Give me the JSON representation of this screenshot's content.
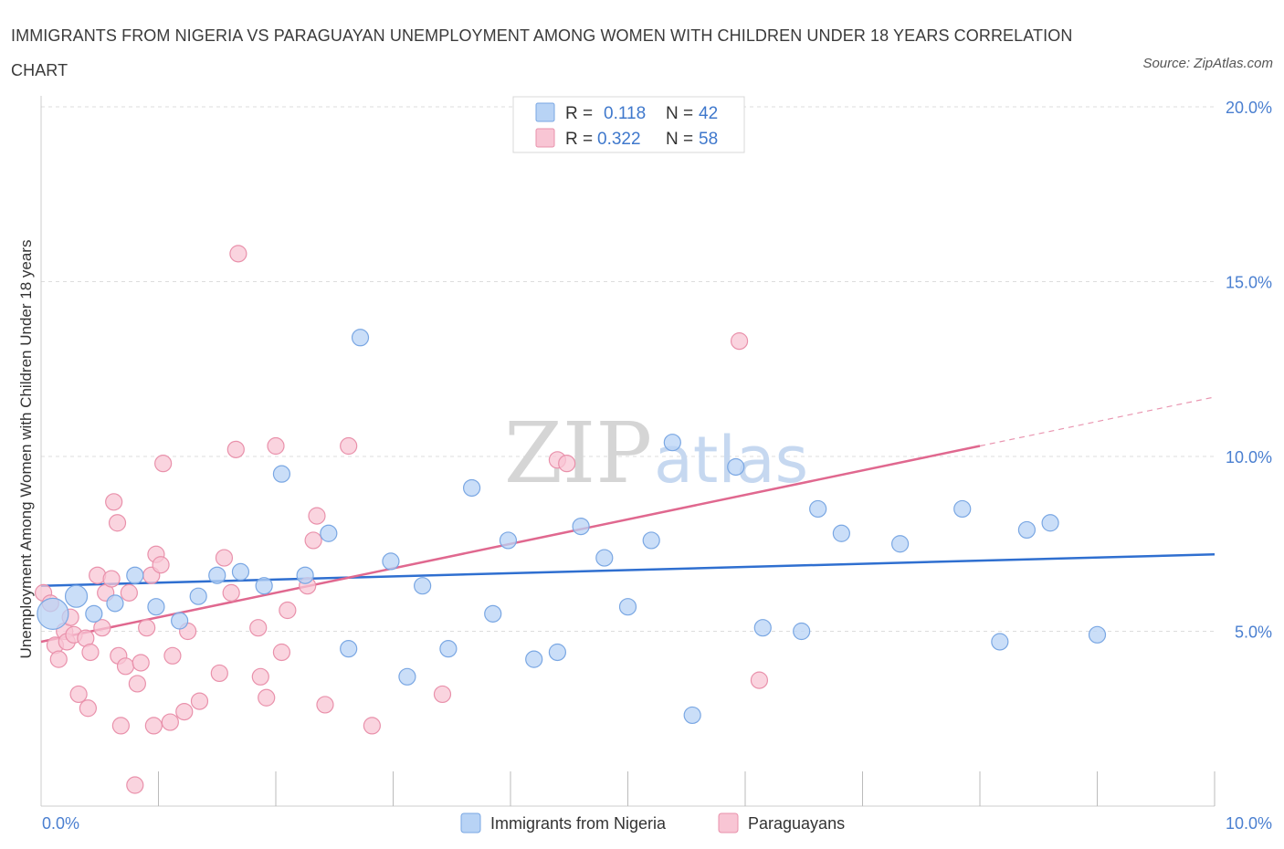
{
  "title": "IMMIGRANTS FROM NIGERIA VS PARAGUAYAN UNEMPLOYMENT AMONG WOMEN WITH CHILDREN UNDER 18 YEARS CORRELATION CHART",
  "source": "Source: ZipAtlas.com",
  "watermark": {
    "zip": "ZIP",
    "atlas": "atlas"
  },
  "colors": {
    "blue_fill": "#b8d3f5",
    "blue_stroke": "#7aa7e3",
    "blue_line": "#2f6fd0",
    "pink_fill": "#f8c5d4",
    "pink_stroke": "#e991ab",
    "pink_line": "#e0688f",
    "grid": "#dddddd",
    "axis_text": "#4a7fd0"
  },
  "legend": {
    "r_label": "R =",
    "n_label": "N =",
    "series": [
      {
        "r": "0.118",
        "n": "42"
      },
      {
        "r": "0.322",
        "n": "58"
      }
    ]
  },
  "chart_data": {
    "type": "scatter",
    "title": "IMMIGRANTS FROM NIGERIA VS PARAGUAYAN UNEMPLOYMENT AMONG WOMEN WITH CHILDREN UNDER 18 YEARS CORRELATION CHART",
    "xlabel": "",
    "ylabel": "Unemployment Among Women with Children Under 18 years",
    "xlim": [
      0,
      10
    ],
    "ylim": [
      0,
      20
    ],
    "x_tick_labels": [
      "0.0%",
      "10.0%"
    ],
    "y_ticks": [
      5,
      10,
      15,
      20
    ],
    "y_tick_labels": [
      "5.0%",
      "10.0%",
      "15.0%",
      "20.0%"
    ],
    "grid": true,
    "legend_position": "top-center",
    "series": [
      {
        "name": "Immigrants from Nigeria",
        "color": "#b8d3f5",
        "r": 0.118,
        "n": 42,
        "trend": {
          "x0": 0,
          "y0": 6.3,
          "x1": 10,
          "y1": 7.2,
          "dashed_to": null
        },
        "points": [
          [
            0.1,
            5.5
          ],
          [
            0.3,
            6.0
          ],
          [
            0.45,
            5.5
          ],
          [
            0.63,
            5.8
          ],
          [
            0.8,
            6.6
          ],
          [
            0.98,
            5.7
          ],
          [
            1.18,
            5.3
          ],
          [
            1.34,
            6.0
          ],
          [
            1.5,
            6.6
          ],
          [
            1.7,
            6.7
          ],
          [
            1.9,
            6.3
          ],
          [
            2.05,
            9.5
          ],
          [
            2.25,
            6.6
          ],
          [
            2.45,
            7.8
          ],
          [
            2.62,
            4.5
          ],
          [
            2.72,
            13.4
          ],
          [
            2.98,
            7.0
          ],
          [
            3.12,
            3.7
          ],
          [
            3.25,
            6.3
          ],
          [
            3.47,
            4.5
          ],
          [
            3.67,
            9.1
          ],
          [
            3.85,
            5.5
          ],
          [
            3.98,
            7.6
          ],
          [
            4.2,
            4.2
          ],
          [
            4.4,
            4.4
          ],
          [
            4.6,
            8.0
          ],
          [
            4.8,
            7.1
          ],
          [
            5.0,
            5.7
          ],
          [
            5.2,
            7.6
          ],
          [
            5.38,
            10.4
          ],
          [
            5.55,
            2.6
          ],
          [
            5.92,
            9.7
          ],
          [
            6.15,
            5.1
          ],
          [
            6.48,
            5.0
          ],
          [
            6.62,
            8.5
          ],
          [
            6.82,
            7.8
          ],
          [
            7.32,
            7.5
          ],
          [
            7.85,
            8.5
          ],
          [
            8.17,
            4.7
          ],
          [
            8.4,
            7.9
          ],
          [
            8.6,
            8.1
          ],
          [
            9.0,
            4.9
          ]
        ]
      },
      {
        "name": "Paraguayans",
        "color": "#f8c5d4",
        "r": 0.322,
        "n": 58,
        "trend": {
          "x0": 0,
          "y0": 4.7,
          "x1": 8.0,
          "y1": 10.3,
          "dashed_to": {
            "x": 10,
            "y": 11.7
          }
        },
        "points": [
          [
            0.02,
            6.1
          ],
          [
            0.08,
            5.8
          ],
          [
            0.12,
            4.6
          ],
          [
            0.15,
            4.2
          ],
          [
            0.2,
            5.0
          ],
          [
            0.22,
            4.7
          ],
          [
            0.25,
            5.4
          ],
          [
            0.28,
            4.9
          ],
          [
            0.32,
            3.2
          ],
          [
            0.38,
            4.8
          ],
          [
            0.4,
            2.8
          ],
          [
            0.42,
            4.4
          ],
          [
            0.48,
            6.6
          ],
          [
            0.52,
            5.1
          ],
          [
            0.55,
            6.1
          ],
          [
            0.6,
            6.5
          ],
          [
            0.62,
            8.7
          ],
          [
            0.65,
            8.1
          ],
          [
            0.66,
            4.3
          ],
          [
            0.68,
            2.3
          ],
          [
            0.72,
            4.0
          ],
          [
            0.75,
            6.1
          ],
          [
            0.8,
            0.6
          ],
          [
            0.82,
            3.5
          ],
          [
            0.85,
            4.1
          ],
          [
            0.9,
            5.1
          ],
          [
            0.94,
            6.6
          ],
          [
            0.96,
            2.3
          ],
          [
            0.98,
            7.2
          ],
          [
            1.02,
            6.9
          ],
          [
            1.04,
            9.8
          ],
          [
            1.1,
            2.4
          ],
          [
            1.12,
            4.3
          ],
          [
            1.22,
            2.7
          ],
          [
            1.25,
            5.0
          ],
          [
            1.35,
            3.0
          ],
          [
            1.52,
            3.8
          ],
          [
            1.56,
            7.1
          ],
          [
            1.62,
            6.1
          ],
          [
            1.66,
            10.2
          ],
          [
            1.68,
            15.8
          ],
          [
            1.85,
            5.1
          ],
          [
            1.87,
            3.7
          ],
          [
            1.92,
            3.1
          ],
          [
            2.0,
            10.3
          ],
          [
            2.05,
            4.4
          ],
          [
            2.1,
            5.6
          ],
          [
            2.27,
            6.3
          ],
          [
            2.32,
            7.6
          ],
          [
            2.35,
            8.3
          ],
          [
            2.42,
            2.9
          ],
          [
            2.62,
            10.3
          ],
          [
            2.82,
            2.3
          ],
          [
            3.42,
            3.2
          ],
          [
            4.4,
            9.9
          ],
          [
            4.48,
            9.8
          ],
          [
            5.95,
            13.3
          ],
          [
            6.12,
            3.6
          ]
        ]
      }
    ]
  }
}
